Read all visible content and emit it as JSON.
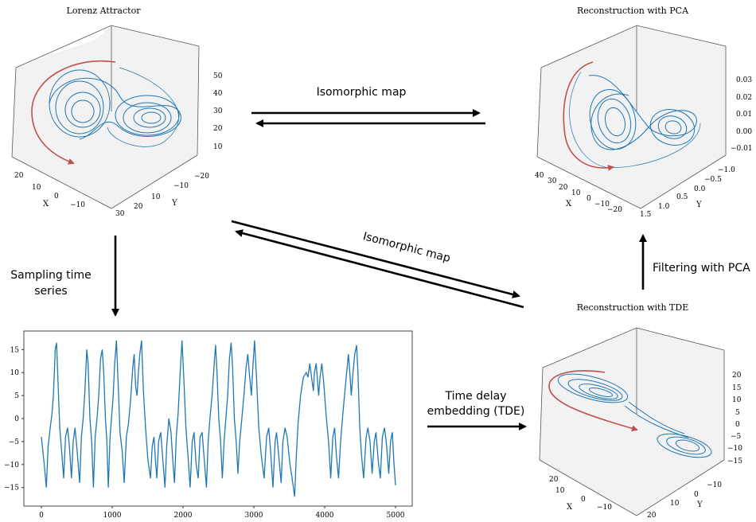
{
  "diagram": {
    "lorenz": {
      "title": "Lorenz Attractor",
      "x_label": "X",
      "y_label": "Y",
      "z_ticks": [
        "50",
        "40",
        "30",
        "20",
        "10"
      ],
      "x_ticks": [
        "20",
        "10",
        "0",
        "−10"
      ],
      "y_ticks": [
        "30",
        "20",
        "10",
        "−10",
        "−20"
      ]
    },
    "pca": {
      "title": "Reconstruction with PCA",
      "x_label": "X",
      "y_label": "Y",
      "z_ticks": [
        "0.03",
        "0.02",
        "0.01",
        "0.00",
        "−0.01"
      ],
      "x_ticks": [
        "40",
        "30",
        "20",
        "10",
        "0",
        "−10",
        "−20"
      ],
      "y_ticks": [
        "1.5",
        "1.0",
        "0.5",
        "0.0",
        "−0.5",
        "−1.0"
      ]
    },
    "tde": {
      "title": "Reconstruction with TDE",
      "x_label": "X",
      "y_label": "Y",
      "z_ticks": [
        "20",
        "15",
        "10",
        "5",
        "0",
        "−5",
        "−10",
        "−15"
      ],
      "x_ticks": [
        "20",
        "10",
        "0",
        "−10"
      ],
      "y_ticks": [
        "20",
        "10",
        "0",
        "−10"
      ]
    },
    "arrows": {
      "isomorphic_top": "Isomorphic map",
      "isomorphic_diag": "Isomorphic map",
      "sampling_line1": "Sampling time",
      "sampling_line2": "series",
      "filtering": "Filtering with PCA",
      "tde_line1": "Time delay",
      "tde_line2": "embedding (TDE)"
    },
    "colors": {
      "trajectory": "#1f77b4",
      "highlight": "#c0504d",
      "arrow": "#000000"
    }
  },
  "chart_data": {
    "type": "line",
    "x_ticks": [
      "0",
      "1000",
      "2000",
      "3000",
      "4000",
      "5000"
    ],
    "y_ticks": [
      "15",
      "10",
      "5",
      "0",
      "−5",
      "−10",
      "−15"
    ],
    "xlim": [
      0,
      5000
    ],
    "ylim": [
      -18,
      18
    ],
    "series": [
      {
        "points": [
          [
            0,
            -4
          ],
          [
            40,
            -10
          ],
          [
            70,
            -15
          ],
          [
            95,
            -6
          ],
          [
            125,
            -2
          ],
          [
            150,
            1
          ],
          [
            170,
            5
          ],
          [
            195,
            15
          ],
          [
            215,
            16.5
          ],
          [
            235,
            8
          ],
          [
            260,
            -2
          ],
          [
            285,
            -7
          ],
          [
            315,
            -13
          ],
          [
            340,
            -4
          ],
          [
            370,
            -2
          ],
          [
            395,
            -6
          ],
          [
            425,
            -13
          ],
          [
            450,
            -5
          ],
          [
            475,
            -2
          ],
          [
            505,
            -7
          ],
          [
            540,
            -14
          ],
          [
            565,
            -4
          ],
          [
            590,
            0
          ],
          [
            615,
            6
          ],
          [
            640,
            15
          ],
          [
            660,
            12
          ],
          [
            685,
            0
          ],
          [
            710,
            -5
          ],
          [
            735,
            -15
          ],
          [
            760,
            -4
          ],
          [
            785,
            0
          ],
          [
            810,
            5
          ],
          [
            835,
            13
          ],
          [
            860,
            15
          ],
          [
            880,
            10
          ],
          [
            905,
            0
          ],
          [
            925,
            -5
          ],
          [
            945,
            -15
          ],
          [
            970,
            -4
          ],
          [
            990,
            0
          ],
          [
            1010,
            4
          ],
          [
            1035,
            12
          ],
          [
            1060,
            17
          ],
          [
            1085,
            7
          ],
          [
            1110,
            -3
          ],
          [
            1140,
            -7
          ],
          [
            1170,
            -14
          ],
          [
            1200,
            -4
          ],
          [
            1230,
            -1
          ],
          [
            1260,
            4
          ],
          [
            1290,
            11
          ],
          [
            1310,
            14
          ],
          [
            1330,
            7
          ],
          [
            1350,
            5
          ],
          [
            1370,
            10
          ],
          [
            1390,
            14
          ],
          [
            1415,
            17
          ],
          [
            1440,
            6
          ],
          [
            1475,
            -3
          ],
          [
            1505,
            -9
          ],
          [
            1540,
            -13
          ],
          [
            1565,
            -6
          ],
          [
            1590,
            -4
          ],
          [
            1610,
            -9
          ],
          [
            1630,
            -13
          ],
          [
            1655,
            -5
          ],
          [
            1685,
            -3
          ],
          [
            1720,
            -10
          ],
          [
            1745,
            -15
          ],
          [
            1770,
            -6
          ],
          [
            1800,
            0
          ],
          [
            1830,
            -3
          ],
          [
            1855,
            -9
          ],
          [
            1880,
            -14
          ],
          [
            1905,
            -4
          ],
          [
            1930,
            1
          ],
          [
            1960,
            10
          ],
          [
            1985,
            17
          ],
          [
            2010,
            9
          ],
          [
            2040,
            -2
          ],
          [
            2070,
            -8
          ],
          [
            2100,
            -15
          ],
          [
            2130,
            -5
          ],
          [
            2155,
            -3
          ],
          [
            2185,
            -10
          ],
          [
            2215,
            -13
          ],
          [
            2240,
            -4
          ],
          [
            2270,
            -3
          ],
          [
            2300,
            -9
          ],
          [
            2330,
            -15
          ],
          [
            2355,
            -5
          ],
          [
            2380,
            0
          ],
          [
            2410,
            5
          ],
          [
            2440,
            12
          ],
          [
            2460,
            16
          ],
          [
            2480,
            10
          ],
          [
            2505,
            0
          ],
          [
            2530,
            -5
          ],
          [
            2555,
            -13
          ],
          [
            2580,
            -5
          ],
          [
            2605,
            0
          ],
          [
            2630,
            5
          ],
          [
            2655,
            13
          ],
          [
            2680,
            16.5
          ],
          [
            2700,
            11
          ],
          [
            2725,
            0
          ],
          [
            2750,
            -5
          ],
          [
            2775,
            -12
          ],
          [
            2800,
            -5
          ],
          [
            2830,
            0
          ],
          [
            2860,
            5
          ],
          [
            2890,
            11
          ],
          [
            2915,
            14
          ],
          [
            2940,
            9
          ],
          [
            2965,
            5
          ],
          [
            2985,
            11
          ],
          [
            3010,
            17
          ],
          [
            3040,
            8
          ],
          [
            3070,
            -2
          ],
          [
            3105,
            -8
          ],
          [
            3145,
            -13
          ],
          [
            3180,
            -4
          ],
          [
            3210,
            -2
          ],
          [
            3240,
            -8
          ],
          [
            3270,
            -15
          ],
          [
            3300,
            -5
          ],
          [
            3320,
            -3
          ],
          [
            3350,
            -8
          ],
          [
            3385,
            -14
          ],
          [
            3410,
            -5
          ],
          [
            3440,
            -2
          ],
          [
            3470,
            -4
          ],
          [
            3510,
            -10
          ],
          [
            3540,
            -13
          ],
          [
            3575,
            -17
          ],
          [
            3600,
            -8
          ],
          [
            3625,
            -1
          ],
          [
            3660,
            5
          ],
          [
            3700,
            9
          ],
          [
            3740,
            10
          ],
          [
            3765,
            9
          ],
          [
            3790,
            12
          ],
          [
            3815,
            9
          ],
          [
            3840,
            6
          ],
          [
            3855,
            10
          ],
          [
            3880,
            12
          ],
          [
            3900,
            8
          ],
          [
            3915,
            5
          ],
          [
            3935,
            9
          ],
          [
            3960,
            12
          ],
          [
            3985,
            8
          ],
          [
            4005,
            4
          ],
          [
            4025,
            0
          ],
          [
            4055,
            -5
          ],
          [
            4085,
            -13
          ],
          [
            4115,
            -4
          ],
          [
            4140,
            -2
          ],
          [
            4165,
            -8
          ],
          [
            4195,
            -13
          ],
          [
            4225,
            -5
          ],
          [
            4250,
            0
          ],
          [
            4280,
            5
          ],
          [
            4310,
            10
          ],
          [
            4335,
            14
          ],
          [
            4355,
            10
          ],
          [
            4375,
            5
          ],
          [
            4400,
            10
          ],
          [
            4425,
            14
          ],
          [
            4450,
            16
          ],
          [
            4470,
            10
          ],
          [
            4495,
            -2
          ],
          [
            4520,
            -8
          ],
          [
            4550,
            -13
          ],
          [
            4585,
            -4
          ],
          [
            4610,
            -2
          ],
          [
            4640,
            -5
          ],
          [
            4670,
            -12
          ],
          [
            4700,
            -5
          ],
          [
            4725,
            -3
          ],
          [
            4755,
            -9
          ],
          [
            4785,
            -13
          ],
          [
            4815,
            -4
          ],
          [
            4845,
            -2
          ],
          [
            4875,
            -6
          ],
          [
            4905,
            -12
          ],
          [
            4930,
            -5
          ],
          [
            4955,
            -3
          ],
          [
            4975,
            -9
          ],
          [
            5000,
            -14.5
          ]
        ]
      }
    ]
  }
}
